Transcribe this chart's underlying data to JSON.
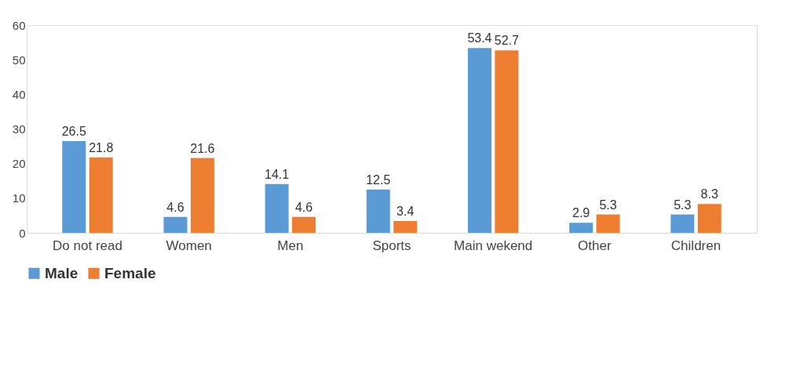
{
  "chart_data": {
    "type": "bar",
    "categories": [
      "Do not read",
      "Women",
      "Men",
      "Sports",
      "Main wekend",
      "Other",
      "Children"
    ],
    "series": [
      {
        "name": "Male",
        "color": "#5b9bd5",
        "values": [
          26.5,
          4.6,
          14.1,
          12.5,
          53.4,
          2.9,
          5.3
        ]
      },
      {
        "name": "Female",
        "color": "#ed7d31",
        "values": [
          21.8,
          21.6,
          4.6,
          3.4,
          52.7,
          5.3,
          8.3
        ]
      }
    ],
    "ylim": [
      0,
      60
    ],
    "yticks": [
      0,
      10,
      20,
      30,
      40,
      50,
      60
    ],
    "grid": false,
    "legend": "bottom",
    "data_labels": true
  }
}
